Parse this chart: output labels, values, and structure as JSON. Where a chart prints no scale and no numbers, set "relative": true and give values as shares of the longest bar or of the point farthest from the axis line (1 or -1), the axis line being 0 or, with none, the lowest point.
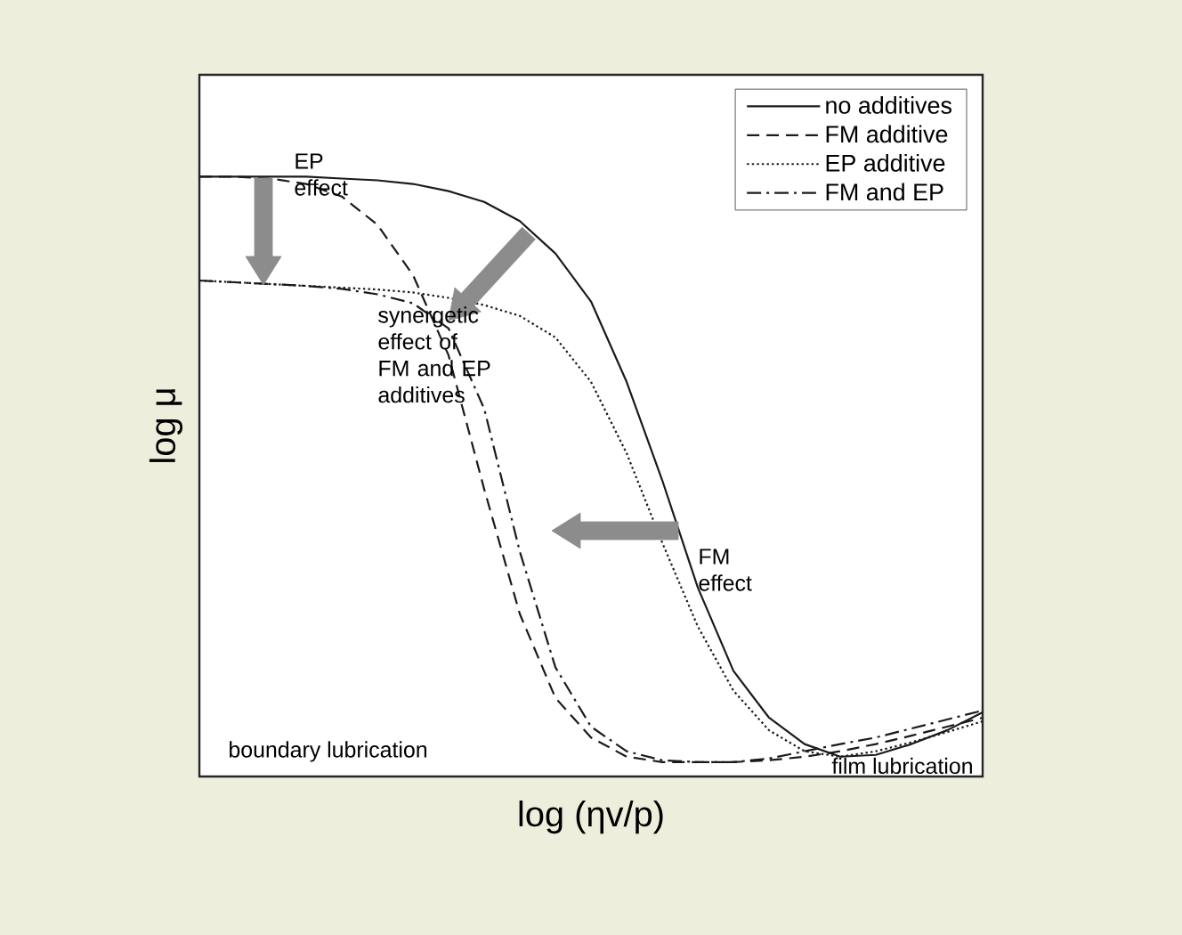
{
  "chart_data": {
    "type": "line",
    "relative": true,
    "xlabel": "log (ηv/p)",
    "ylabel": "log μ",
    "categories": [
      null,
      null,
      null,
      null,
      null,
      null,
      null,
      null,
      null,
      null,
      null,
      null,
      null,
      null,
      null,
      null,
      null,
      null,
      null,
      null,
      null,
      null,
      null
    ],
    "series": [
      {
        "name": "no additives",
        "color": "#1a1a1a",
        "line_style": "solid",
        "values": [
          1.0,
          1.0,
          1.0,
          1.0,
          0.997,
          0.994,
          0.988,
          0.976,
          0.958,
          0.926,
          0.872,
          0.792,
          0.658,
          0.494,
          0.315,
          0.176,
          0.098,
          0.054,
          0.033,
          0.036,
          0.054,
          0.077,
          0.107
        ]
      },
      {
        "name": "FM additive",
        "color": "#1a1a1a",
        "line_style": "dashed",
        "values": [
          1.0,
          1.0,
          0.997,
          0.988,
          0.967,
          0.92,
          0.836,
          0.702,
          0.479,
          0.271,
          0.131,
          0.065,
          0.033,
          0.024,
          0.024,
          0.024,
          0.027,
          0.033,
          0.042,
          0.054,
          0.068,
          0.083,
          0.098
        ]
      },
      {
        "name": "EP additive",
        "color": "#1a1a1a",
        "line_style": "dotted",
        "values": [
          0.827,
          0.824,
          0.821,
          0.818,
          0.815,
          0.812,
          0.807,
          0.798,
          0.786,
          0.768,
          0.732,
          0.658,
          0.539,
          0.39,
          0.25,
          0.143,
          0.077,
          0.042,
          0.033,
          0.042,
          0.057,
          0.074,
          0.092
        ]
      },
      {
        "name": "FM and EP",
        "color": "#1a1a1a",
        "line_style": "dashdot",
        "values": [
          0.827,
          0.824,
          0.821,
          0.818,
          0.813,
          0.804,
          0.789,
          0.747,
          0.613,
          0.375,
          0.182,
          0.083,
          0.042,
          0.027,
          0.024,
          0.024,
          0.03,
          0.042,
          0.054,
          0.065,
          0.08,
          0.095,
          0.11
        ]
      }
    ],
    "annotations": [
      "EP effect",
      "synergetic effect of FM and EP additives",
      "FM effect",
      "boundary lubrication",
      "film lubrication"
    ],
    "legend": "top right",
    "tick_labels": false,
    "marker": "none"
  }
}
